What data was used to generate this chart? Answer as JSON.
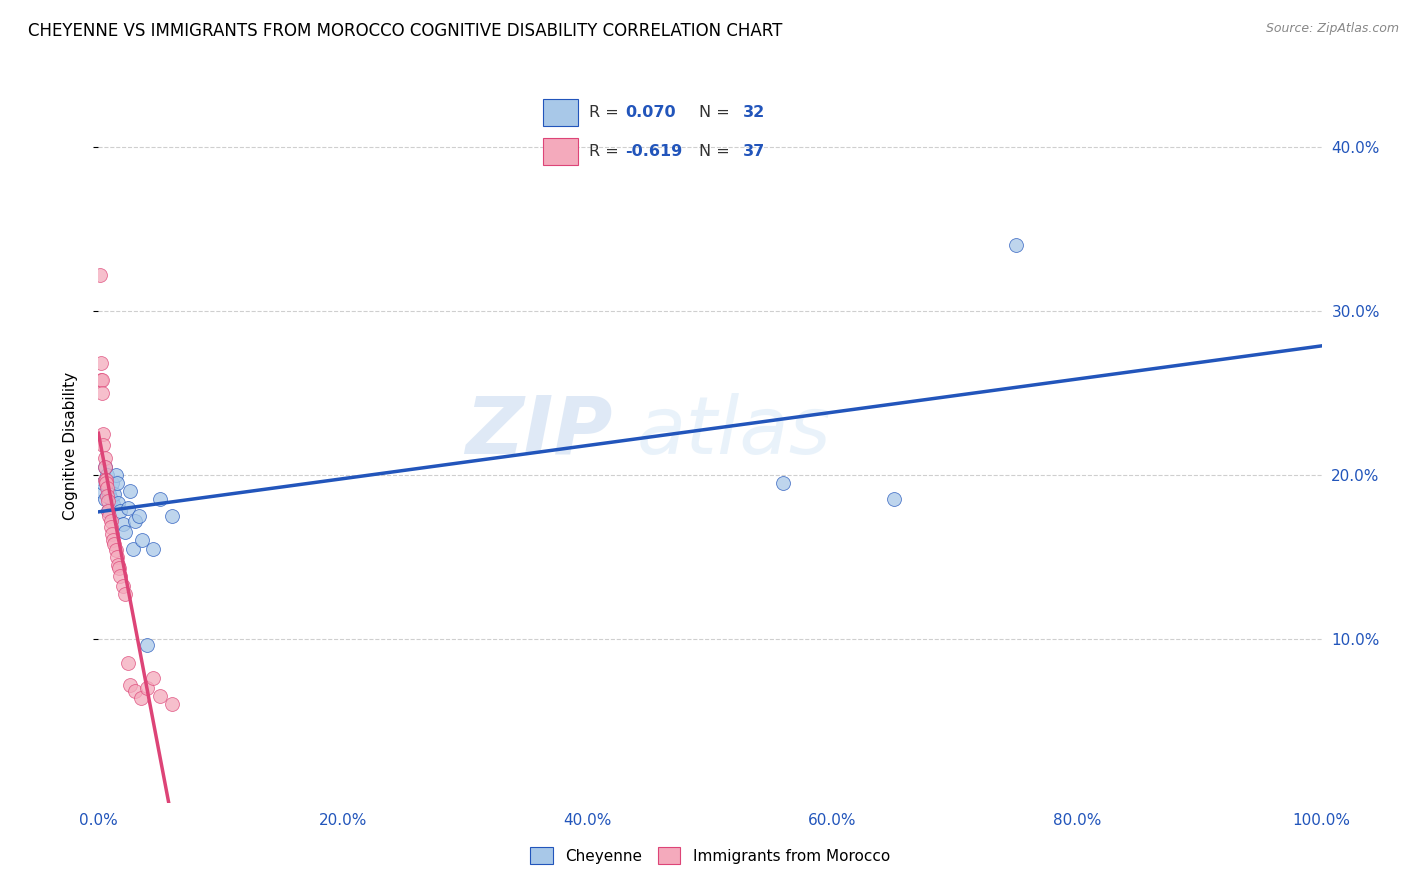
{
  "title": "CHEYENNE VS IMMIGRANTS FROM MOROCCO COGNITIVE DISABILITY CORRELATION CHART",
  "source": "Source: ZipAtlas.com",
  "ylabel": "Cognitive Disability",
  "xlim": [
    0.0,
    1.0
  ],
  "ylim": [
    0.0,
    0.435
  ],
  "xtick_labels": [
    "0.0%",
    "20.0%",
    "40.0%",
    "60.0%",
    "80.0%",
    "100.0%"
  ],
  "xtick_vals": [
    0.0,
    0.2,
    0.4,
    0.6,
    0.8,
    1.0
  ],
  "ytick_labels": [
    "10.0%",
    "20.0%",
    "30.0%",
    "40.0%"
  ],
  "ytick_vals": [
    0.1,
    0.2,
    0.3,
    0.4
  ],
  "watermark": "ZIPatlas",
  "legend_blue_r": "0.070",
  "legend_blue_n": "32",
  "legend_pink_r": "-0.619",
  "legend_pink_n": "37",
  "blue_color": "#A8C8E8",
  "pink_color": "#F4AABC",
  "blue_line_color": "#2255BB",
  "pink_line_color": "#DD4477",
  "background_color": "#FFFFFF",
  "grid_color": "#BBBBBB",
  "title_fontsize": 12,
  "axis_label_fontsize": 11,
  "tick_fontsize": 11,
  "marker_size": 100,
  "cheyenne_x": [
    0.002,
    0.004,
    0.005,
    0.005,
    0.006,
    0.007,
    0.008,
    0.008,
    0.009,
    0.01,
    0.011,
    0.012,
    0.013,
    0.014,
    0.015,
    0.016,
    0.018,
    0.02,
    0.022,
    0.024,
    0.026,
    0.028,
    0.03,
    0.033,
    0.036,
    0.04,
    0.045,
    0.05,
    0.06,
    0.56,
    0.65,
    0.75
  ],
  "cheyenne_y": [
    0.19,
    0.195,
    0.185,
    0.205,
    0.195,
    0.2,
    0.178,
    0.192,
    0.188,
    0.185,
    0.195,
    0.182,
    0.188,
    0.2,
    0.195,
    0.183,
    0.178,
    0.17,
    0.165,
    0.18,
    0.19,
    0.155,
    0.172,
    0.175,
    0.16,
    0.096,
    0.155,
    0.185,
    0.175,
    0.195,
    0.185,
    0.34
  ],
  "morocco_x": [
    0.001,
    0.002,
    0.002,
    0.003,
    0.003,
    0.004,
    0.004,
    0.005,
    0.005,
    0.005,
    0.006,
    0.006,
    0.007,
    0.007,
    0.008,
    0.008,
    0.009,
    0.01,
    0.01,
    0.011,
    0.012,
    0.013,
    0.014,
    0.015,
    0.016,
    0.017,
    0.018,
    0.02,
    0.022,
    0.024,
    0.026,
    0.03,
    0.035,
    0.04,
    0.045,
    0.05,
    0.06
  ],
  "morocco_y": [
    0.322,
    0.268,
    0.258,
    0.258,
    0.25,
    0.225,
    0.218,
    0.21,
    0.205,
    0.197,
    0.197,
    0.195,
    0.192,
    0.187,
    0.184,
    0.178,
    0.175,
    0.172,
    0.168,
    0.164,
    0.16,
    0.158,
    0.154,
    0.15,
    0.145,
    0.143,
    0.138,
    0.132,
    0.127,
    0.085,
    0.072,
    0.068,
    0.064,
    0.07,
    0.076,
    0.065,
    0.06
  ]
}
